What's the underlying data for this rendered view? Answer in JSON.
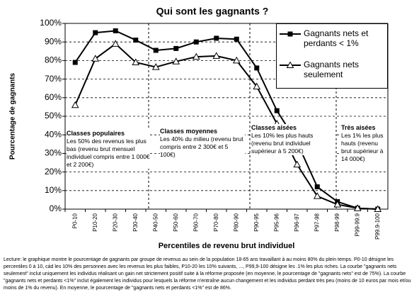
{
  "chart_data": {
    "type": "line",
    "title": "Qui sont les gagnants ?",
    "x_label": "Percentiles de revenu brut individuel",
    "y_label": "Pourcentage de gagnants",
    "categories": [
      "P0-10",
      "P10-20",
      "P20-30",
      "P30-40",
      "P40-50",
      "P50-60",
      "P60-70",
      "P70-80",
      "P80-90",
      "P90-95",
      "P95-96",
      "P96-97",
      "P97-98",
      "P98-99",
      "P99-99.9",
      "P99.9-100"
    ],
    "series": [
      {
        "name": "Gagnants nets et perdants < 1%",
        "color": "#000000",
        "marker": "square",
        "values": [
          79,
          95,
          96,
          91,
          85.5,
          86.5,
          90,
          92,
          91.5,
          76,
          53,
          36,
          12,
          4,
          0.5,
          0
        ]
      },
      {
        "name": "Gagnants nets seulement",
        "color": "#000000",
        "marker": "triangle",
        "values": [
          56,
          81,
          89,
          79,
          76.5,
          79.5,
          82,
          82.5,
          80,
          66,
          46,
          24,
          7,
          2.5,
          0.5,
          0
        ]
      }
    ],
    "ylim": [
      0,
      100
    ],
    "yticks": [
      {
        "value": 0,
        "label": "0%"
      },
      {
        "value": 10,
        "label": "10%"
      },
      {
        "value": 20,
        "label": "20%"
      },
      {
        "value": 30,
        "label": "30%"
      },
      {
        "value": 40,
        "label": "40%"
      },
      {
        "value": 50,
        "label": "50%"
      },
      {
        "value": 60,
        "label": "60%"
      },
      {
        "value": 70,
        "label": "70%"
      },
      {
        "value": 80,
        "label": "80%"
      },
      {
        "value": 90,
        "label": "90%"
      },
      {
        "value": 100,
        "label": "100%"
      }
    ],
    "grid": true,
    "legend": "upper right",
    "annotations": [
      {
        "title": "Classes populaires",
        "text": "Les 50% des revenus les plus bas (revenu brut mensuel individuel compris entre 1 000€ et 2 200€)"
      },
      {
        "title": "Classes moyennes",
        "text": "Les 40% du milieu (revenu brut compris entre 2 300€ et 5 100€)"
      },
      {
        "title": "Classes aisées",
        "text": "Les 10% les plus hauts (revenu brut individuel supérieur à 5 200€)"
      },
      {
        "title": "Très aisées",
        "text": "Les 1% les plus hauts (revenu brut supérieur à 14 000€)"
      }
    ],
    "note": "Lecture: le graphique montre le pourcentage de gagnants par groupe de revenus au sein de la population 18-65 ans travaillant à au moins 80% du plein temps. P0-10 désigne les percentiles 0 à 10, càd les 10% des personnes avec les revenus les plus faibles, P10-20 les 10% suivants, ..., P99,9-100 désigne les .1% les plus riches. La courbe \"gagnants nets seulement\" inclut uniquement les individus réalisant un gain net strictement positif suite à la réforme proposée (en moyenne, le pourcentage de \"gagnants nets\" est de 75%). La courbe \"gagnants nets et perdants <1%\" inclut également les individus pour lesquels la réforme n'entraîne aucun changement et les individus perdant très peu (moins de 10 euros par mois et/ou moins de 1% du revenu). En moyenne, le pourcentage de \"gagnants nets et perdants <1%\" est de 86%."
  }
}
